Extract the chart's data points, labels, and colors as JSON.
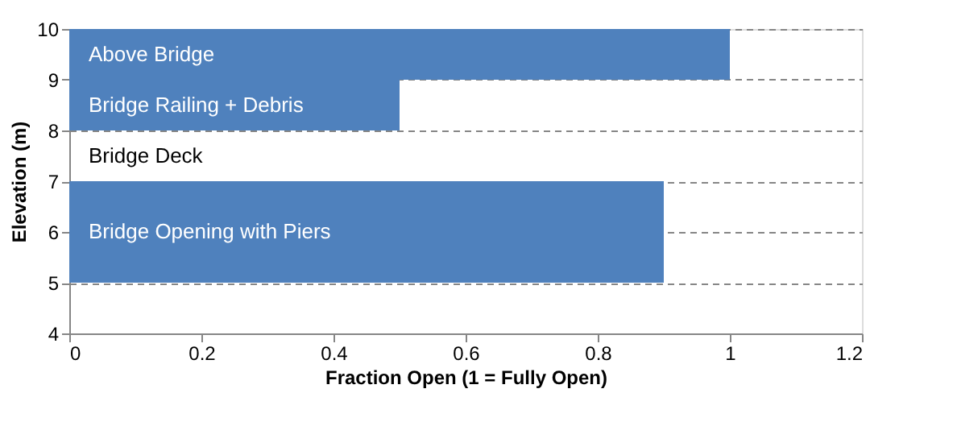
{
  "chart_data": {
    "type": "bar",
    "orientation": "horizontal",
    "xlabel": "Fraction Open (1 = Fully Open)",
    "ylabel": "Elevation (m)",
    "x": [
      9.5,
      8.5,
      7.5,
      6
    ],
    "values": [
      1,
      0.5,
      0,
      0.9
    ],
    "color": "#4f81bd",
    "annotations": [
      "Above Bridge",
      "Bridge Railing + Debris",
      "Bridge Deck",
      "Bridge Opening with Piers"
    ],
    "xlim": [
      0,
      1.2
    ],
    "xticks": [
      0,
      0.2,
      0.4,
      0.6,
      0.8,
      1,
      1.2
    ],
    "ylim": [
      4,
      10
    ],
    "yticks": [
      4,
      5,
      6,
      7,
      8,
      9,
      10
    ],
    "grid": "y"
  }
}
